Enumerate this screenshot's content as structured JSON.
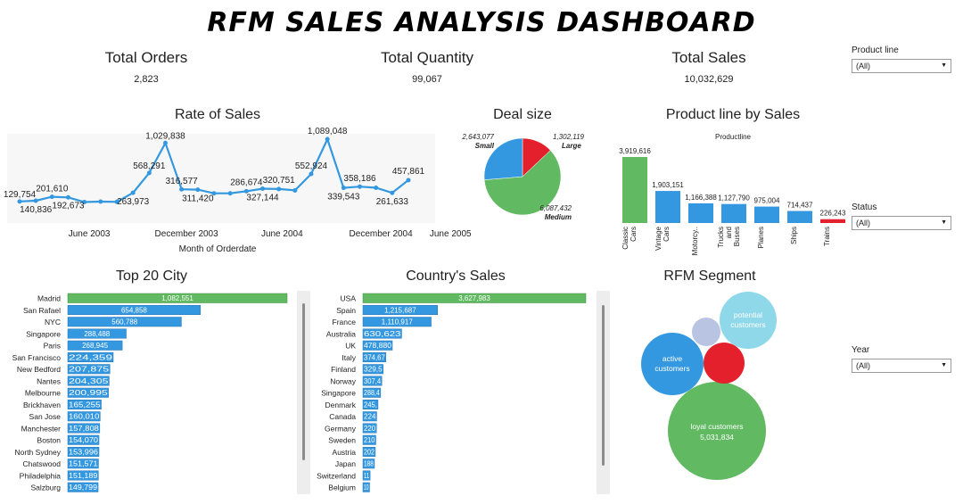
{
  "dashboard": {
    "title": "RFM SALES ANALYSIS DASHBOARD"
  },
  "kpis": {
    "orders": {
      "label": "Total Orders",
      "value": "2,823"
    },
    "quantity": {
      "label": "Total Quantity",
      "value": "99,067"
    },
    "sales": {
      "label": "Total Sales",
      "value": "10,032,629"
    }
  },
  "filters": {
    "product_line": {
      "label": "Product line",
      "value": "(All)"
    },
    "status": {
      "label": "Status",
      "value": "(All)"
    },
    "year": {
      "label": "Year",
      "value": "(All)"
    }
  },
  "colors": {
    "blue": "#3498e0",
    "green": "#61b962",
    "red": "#e3202c",
    "light_blue": "#8fd8ea",
    "lavender": "#b9c3e2"
  },
  "chart_data": [
    {
      "id": "rate_of_sales",
      "type": "line",
      "title": "Rate of Sales",
      "xlabel": "Month of Orderdate",
      "ylabel": "",
      "x_ticks": [
        "June 2003",
        "December 2003",
        "June 2004",
        "December 2004",
        "June 2005"
      ],
      "x_tick_positions": [
        5,
        11,
        17,
        23,
        28
      ],
      "values": [
        129754,
        140836,
        201610,
        192673,
        120000,
        128000,
        124000,
        263973,
        568291,
        1029838,
        316577,
        311420,
        255000,
        255000,
        286674,
        327144,
        320751,
        300000,
        552924,
        1089048,
        339543,
        358186,
        340000,
        261633,
        457861
      ],
      "data_labels": [
        {
          "i": 0,
          "text": "129,754"
        },
        {
          "i": 1,
          "text": "140,836"
        },
        {
          "i": 2,
          "text": "201,610"
        },
        {
          "i": 3,
          "text": "192,673"
        },
        {
          "i": 7,
          "text": "263,973"
        },
        {
          "i": 8,
          "text": "568,291"
        },
        {
          "i": 9,
          "text": "1,029,838"
        },
        {
          "i": 10,
          "text": "316,577"
        },
        {
          "i": 11,
          "text": "311,420"
        },
        {
          "i": 14,
          "text": "286,674"
        },
        {
          "i": 15,
          "text": "327,144"
        },
        {
          "i": 16,
          "text": "320,751"
        },
        {
          "i": 18,
          "text": "552,924"
        },
        {
          "i": 19,
          "text": "1,089,048"
        },
        {
          "i": 20,
          "text": "339,543"
        },
        {
          "i": 21,
          "text": "358,186"
        },
        {
          "i": 23,
          "text": "261,633"
        },
        {
          "i": 24,
          "text": "457,861"
        }
      ]
    },
    {
      "id": "deal_size",
      "type": "pie",
      "title": "Deal size",
      "slices": [
        {
          "name": "Large",
          "value": 1302119,
          "label": "1,302,119",
          "color": "#e3202c"
        },
        {
          "name": "Medium",
          "value": 6087432,
          "label": "6,087,432",
          "color": "#61b962"
        },
        {
          "name": "Small",
          "value": 2643077,
          "label": "2,643,077",
          "color": "#3498e0"
        }
      ]
    },
    {
      "id": "product_line_by_sales",
      "type": "bar",
      "title": "Product line by Sales",
      "subtitle": "Productline",
      "categories": [
        "Classic Cars",
        "Vintage Cars",
        "Motorcy..",
        "Trucks and Buses",
        "Planes",
        "Ships",
        "Trains"
      ],
      "values": [
        3919616,
        1903151,
        1166388,
        1127790,
        975004,
        714437,
        226243
      ],
      "labels": [
        "3,919,616",
        "1,903,151",
        "1,166,388",
        "1,127,790",
        "975,004",
        "714,437",
        "226,243"
      ],
      "colors": [
        "#61b962",
        "#3498e0",
        "#3498e0",
        "#3498e0",
        "#3498e0",
        "#3498e0",
        "#e3202c"
      ]
    },
    {
      "id": "top_20_city",
      "type": "bar",
      "title": "Top 20 City",
      "categories": [
        "Madrid",
        "San Rafael",
        "NYC",
        "Singapore",
        "Paris",
        "San Francisco",
        "New Bedford",
        "Nantes",
        "Melbourne",
        "Brickhaven",
        "San Jose",
        "Manchester",
        "Boston",
        "North Sydney",
        "Chatswood",
        "Philadelphia",
        "Salzburg"
      ],
      "values": [
        1082551,
        654858,
        560788,
        288488,
        268945,
        224359,
        207875,
        204305,
        200995,
        165255,
        160010,
        157808,
        154070,
        153996,
        151571,
        151189,
        149799
      ],
      "labels": [
        "1,082,551",
        "654,858",
        "560,788",
        "288,488",
        "268,945",
        "224,359",
        "207,875",
        "204,305",
        "200,995",
        "165,255",
        "160,010",
        "157,808",
        "154,070",
        "153,996",
        "151,571",
        "151,189",
        "149,799"
      ]
    },
    {
      "id": "country_sales",
      "type": "bar",
      "title": "Country's Sales",
      "categories": [
        "USA",
        "Spain",
        "France",
        "Australia",
        "UK",
        "Italy",
        "Finland",
        "Norway",
        "Singapore",
        "Denmark",
        "Canada",
        "Germany",
        "Sweden",
        "Austria",
        "Japan",
        "Switzerland",
        "Belgium"
      ],
      "values": [
        3627983,
        1215687,
        1110917,
        630623,
        478880,
        374674,
        329581,
        307463,
        288488,
        245637,
        224079,
        220472,
        210014,
        202063,
        188168,
        117714,
        108412
      ],
      "labels": [
        "3,627,983",
        "1,215,687",
        "1,110,917",
        "630,623",
        "478,880",
        "374,67",
        "329,5",
        "307,4",
        "288,4",
        "245,",
        "224",
        "220",
        "210",
        "202",
        "188",
        "11",
        "10"
      ]
    },
    {
      "id": "rfm_segment",
      "type": "bubble",
      "title": "RFM Segment",
      "bubbles": [
        {
          "name": "loyal customers",
          "value_label": "5,031,834",
          "color": "#61b962"
        },
        {
          "name": "active customers",
          "value_label": "",
          "color": "#3498e0"
        },
        {
          "name": "potential customers",
          "value_label": "",
          "color": "#8fd8ea"
        },
        {
          "name": "",
          "value_label": "",
          "color": "#e3202c"
        },
        {
          "name": "",
          "value_label": "",
          "color": "#b9c3e2"
        }
      ]
    }
  ]
}
